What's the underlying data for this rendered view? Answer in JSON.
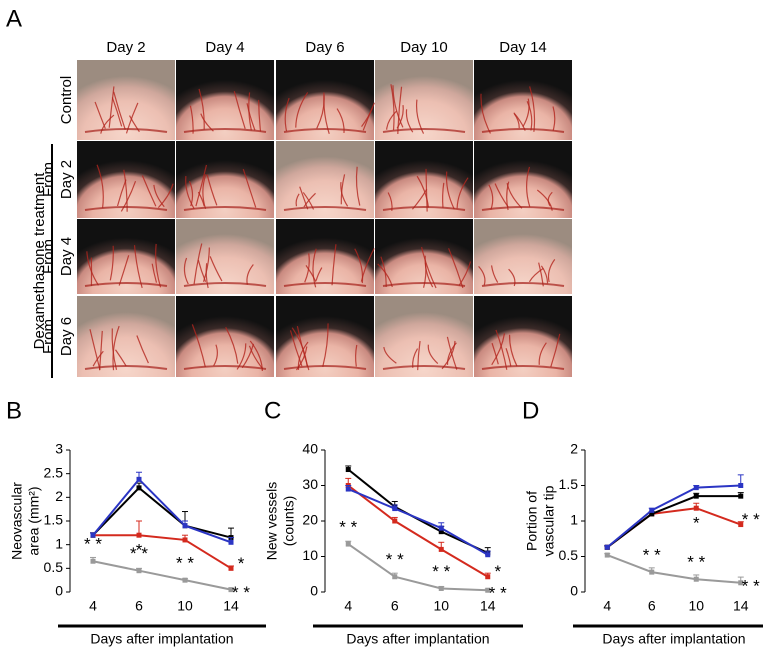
{
  "panel_a": {
    "label": "A",
    "columns": [
      "Day 2",
      "Day 4",
      "Day 6",
      "Day 10",
      "Day 14"
    ],
    "group_label": "Dexamethasone treatment",
    "rows": [
      {
        "lines": [
          "Control"
        ],
        "color": "#000000"
      },
      {
        "lines": [
          "From",
          "Day 2"
        ],
        "color": "#9a9a9a"
      },
      {
        "lines": [
          "From",
          "Day 4"
        ],
        "color": "#d42a1e"
      },
      {
        "lines": [
          "From",
          "Day 6"
        ],
        "color": "#2b35c4"
      }
    ]
  },
  "chart_data": [
    {
      "type": "line",
      "label": "B",
      "ylabel": [
        "Neovascular",
        "area (mm²)"
      ],
      "xlabel": "Days after implantation",
      "categories": [
        "4",
        "6",
        "10",
        "14"
      ],
      "ylim": [
        0,
        3
      ],
      "yticks": [
        0,
        0.5,
        1,
        1.5,
        2,
        2.5,
        3
      ],
      "series": [
        {
          "color": "#9a9a9a",
          "values": [
            0.65,
            0.45,
            0.25,
            0.05
          ],
          "errors": [
            0.08,
            0.05,
            0.03,
            0.03
          ]
        },
        {
          "color": "#d42a1e",
          "values": [
            1.2,
            1.2,
            1.1,
            0.5
          ],
          "errors": [
            0.05,
            0.3,
            0.1,
            0.05
          ]
        },
        {
          "color": "#000000",
          "values": [
            1.2,
            2.2,
            1.4,
            1.15
          ],
          "errors": [
            0.05,
            0.1,
            0.3,
            0.2
          ]
        },
        {
          "color": "#2b35c4",
          "values": [
            1.2,
            2.38,
            1.4,
            1.05
          ],
          "errors": [
            0.05,
            0.15,
            0.1,
            0.1
          ]
        }
      ],
      "annotations": [
        {
          "category": "4",
          "text": "* *"
        },
        {
          "category": "6",
          "text": "*"
        },
        {
          "category": "6",
          "text": "* *"
        },
        {
          "category": "10",
          "text": "* *"
        },
        {
          "category": "14",
          "text": "*"
        },
        {
          "category": "14",
          "text": "* *"
        }
      ]
    },
    {
      "type": "line",
      "label": "C",
      "ylabel": [
        "New vessels",
        "(counts)"
      ],
      "xlabel": "Days after implantation",
      "categories": [
        "4",
        "6",
        "10",
        "14"
      ],
      "ylim": [
        0,
        40
      ],
      "yticks": [
        0,
        10,
        20,
        30,
        40
      ],
      "series": [
        {
          "color": "#9a9a9a",
          "values": [
            13.5,
            4.3,
            1,
            0.5
          ],
          "errors": [
            0.8,
            1,
            0.5,
            0.3
          ]
        },
        {
          "color": "#d42a1e",
          "values": [
            30,
            20,
            12,
            4.3
          ],
          "errors": [
            2,
            1,
            2,
            1
          ]
        },
        {
          "color": "#000000",
          "values": [
            34.5,
            24,
            17,
            11
          ],
          "errors": [
            1,
            1.5,
            1.5,
            1.5
          ]
        },
        {
          "color": "#2b35c4",
          "values": [
            29,
            23.5,
            18,
            10.5
          ],
          "errors": [
            1,
            1,
            1.5,
            1
          ]
        }
      ],
      "annotations": [
        {
          "category": "4",
          "text": "* *"
        },
        {
          "category": "6",
          "text": "* *"
        },
        {
          "category": "10",
          "text": "* *"
        },
        {
          "category": "14",
          "text": "*"
        },
        {
          "category": "14",
          "text": "* *"
        }
      ]
    },
    {
      "type": "line",
      "label": "D",
      "ylabel": [
        "Portion of",
        "vascular tip"
      ],
      "xlabel": "Days after implantation",
      "categories": [
        "4",
        "6",
        "10",
        "14"
      ],
      "ylim": [
        0,
        2
      ],
      "yticks": [
        0,
        0.5,
        1,
        1.5,
        2
      ],
      "series": [
        {
          "color": "#9a9a9a",
          "values": [
            0.52,
            0.28,
            0.18,
            0.13
          ],
          "errors": [
            0.02,
            0.06,
            0.06,
            0.08
          ]
        },
        {
          "color": "#d42a1e",
          "values": [
            0.63,
            1.1,
            1.18,
            0.95
          ],
          "errors": [
            0.02,
            0.03,
            0.07,
            0.04
          ]
        },
        {
          "color": "#000000",
          "values": [
            0.63,
            1.1,
            1.35,
            1.35
          ],
          "errors": [
            0.02,
            0.03,
            0.04,
            0.05
          ]
        },
        {
          "color": "#2b35c4",
          "values": [
            0.63,
            1.15,
            1.47,
            1.5
          ],
          "errors": [
            0.02,
            0.03,
            0.03,
            0.15
          ]
        }
      ],
      "annotations": [
        {
          "category": "6",
          "text": "* *"
        },
        {
          "category": "10",
          "text": "*"
        },
        {
          "category": "10",
          "text": "* *"
        },
        {
          "category": "14",
          "text": "* *"
        },
        {
          "category": "14",
          "text": "* *"
        }
      ]
    }
  ]
}
